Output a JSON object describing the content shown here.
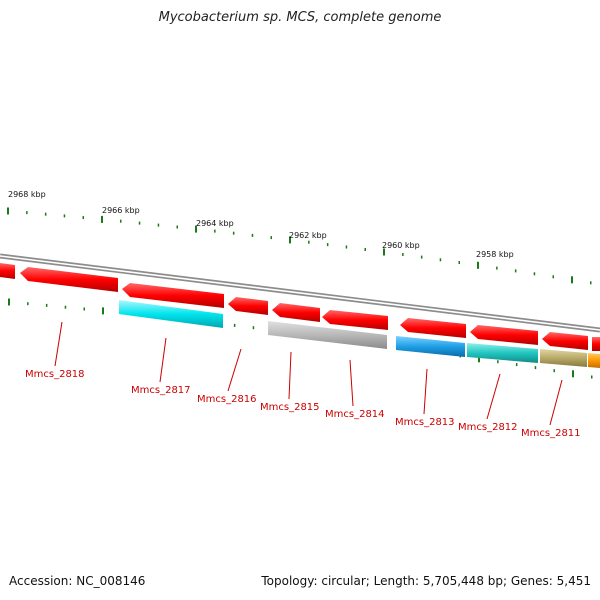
{
  "title": "Mycobacterium sp. MCS, complete genome",
  "footer": {
    "accession": "Accession: NC_008146",
    "topology": "Topology: circular; Length: 5,705,448 bp; Genes: 5,451"
  },
  "scale_labels": [
    "2968 kbp",
    "2966 kbp",
    "2964 kbp",
    "2962 kbp",
    "2960 kbp",
    "2958 kbp"
  ],
  "gene_labels": [
    "Mmcs_2818",
    "Mmcs_2817",
    "Mmcs_2816",
    "Mmcs_2815",
    "Mmcs_2814",
    "Mmcs_2813",
    "Mmcs_2812",
    "Mmcs_2811"
  ],
  "colors": {
    "forward_strand": "#ff0000",
    "cyan_feature": "#00e5ee",
    "gray_feature": "#b8b8b8",
    "blue_feature": "#1e9fe6",
    "teal_feature": "#20c6c0",
    "olive_feature": "#b8aa66",
    "orange_feature": "#ff9900",
    "tick_color": "#1a7a1a",
    "label_color": "#cc0000"
  }
}
